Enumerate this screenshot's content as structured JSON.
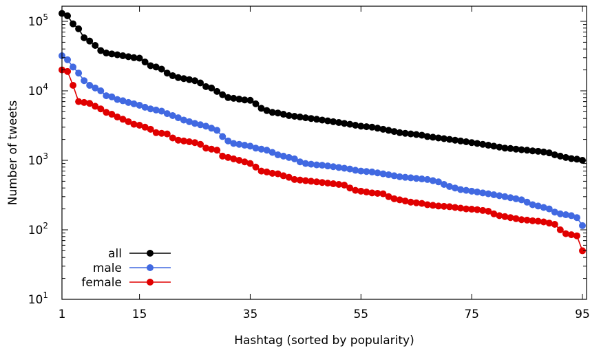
{
  "chart_data": {
    "type": "line",
    "xlabel": "Hashtag (sorted by popularity)",
    "ylabel": "Number of tweets",
    "xlim": [
      1,
      95
    ],
    "ylim": [
      10,
      160000
    ],
    "yscale": "log",
    "x_ticks": [
      1,
      15,
      35,
      55,
      75,
      95
    ],
    "y_ticks": [
      {
        "value": 10,
        "base": "10",
        "exp": "1"
      },
      {
        "value": 100,
        "base": "10",
        "exp": "2"
      },
      {
        "value": 1000,
        "base": "10",
        "exp": "3"
      },
      {
        "value": 10000,
        "base": "10",
        "exp": "4"
      },
      {
        "value": 100000,
        "base": "10",
        "exp": "5"
      }
    ],
    "legend_position": "bottom-left",
    "grid": false,
    "x": [
      1,
      2,
      3,
      4,
      5,
      6,
      7,
      8,
      9,
      10,
      11,
      12,
      13,
      14,
      15,
      16,
      17,
      18,
      19,
      20,
      21,
      22,
      23,
      24,
      25,
      26,
      27,
      28,
      29,
      30,
      31,
      32,
      33,
      34,
      35,
      36,
      37,
      38,
      39,
      40,
      41,
      42,
      43,
      44,
      45,
      46,
      47,
      48,
      49,
      50,
      51,
      52,
      53,
      54,
      55,
      56,
      57,
      58,
      59,
      60,
      61,
      62,
      63,
      64,
      65,
      66,
      67,
      68,
      69,
      70,
      71,
      72,
      73,
      74,
      75,
      76,
      77,
      78,
      79,
      80,
      81,
      82,
      83,
      84,
      85,
      86,
      87,
      88,
      89,
      90,
      91,
      92,
      93,
      94,
      95
    ],
    "series": [
      {
        "name": "all",
        "color": "#000000",
        "values": [
          130000,
          120000,
          92000,
          78000,
          58000,
          52000,
          45000,
          38000,
          35000,
          34000,
          33000,
          32000,
          31000,
          30000,
          29500,
          26000,
          23000,
          22000,
          20500,
          18000,
          16500,
          15500,
          15000,
          14500,
          14000,
          13000,
          11500,
          11000,
          9800,
          8800,
          8000,
          7800,
          7600,
          7400,
          7300,
          6500,
          5600,
          5200,
          4900,
          4800,
          4600,
          4400,
          4300,
          4200,
          4100,
          4000,
          3900,
          3800,
          3700,
          3600,
          3500,
          3400,
          3300,
          3200,
          3100,
          3050,
          3000,
          2900,
          2800,
          2700,
          2600,
          2500,
          2450,
          2400,
          2350,
          2300,
          2200,
          2150,
          2100,
          2050,
          2000,
          1950,
          1900,
          1850,
          1800,
          1750,
          1700,
          1650,
          1600,
          1550,
          1500,
          1480,
          1450,
          1420,
          1400,
          1370,
          1350,
          1320,
          1280,
          1200,
          1150,
          1100,
          1060,
          1040,
          1000
        ]
      },
      {
        "name": "male",
        "color": "#4169e1",
        "values": [
          32000,
          28000,
          22000,
          18000,
          14000,
          12000,
          11000,
          10000,
          8500,
          8200,
          7500,
          7200,
          6800,
          6500,
          6200,
          5800,
          5500,
          5300,
          5100,
          4700,
          4400,
          4100,
          3800,
          3600,
          3400,
          3250,
          3100,
          2900,
          2700,
          2200,
          1900,
          1750,
          1700,
          1650,
          1600,
          1500,
          1450,
          1400,
          1300,
          1200,
          1150,
          1100,
          1050,
          950,
          900,
          880,
          860,
          850,
          830,
          810,
          790,
          770,
          750,
          720,
          700,
          690,
          680,
          660,
          640,
          620,
          600,
          580,
          570,
          560,
          550,
          540,
          530,
          510,
          490,
          450,
          420,
          400,
          380,
          370,
          360,
          350,
          340,
          330,
          320,
          310,
          300,
          290,
          280,
          270,
          250,
          230,
          220,
          210,
          200,
          180,
          170,
          165,
          160,
          150,
          115
        ]
      },
      {
        "name": "female",
        "color": "#e00000",
        "values": [
          20000,
          19000,
          12000,
          7000,
          6800,
          6600,
          6000,
          5500,
          4900,
          4600,
          4200,
          3900,
          3600,
          3300,
          3200,
          3000,
          2800,
          2500,
          2450,
          2400,
          2100,
          1950,
          1900,
          1850,
          1800,
          1700,
          1500,
          1450,
          1400,
          1150,
          1100,
          1050,
          1000,
          950,
          900,
          800,
          700,
          680,
          650,
          640,
          600,
          570,
          530,
          520,
          510,
          500,
          490,
          480,
          470,
          460,
          450,
          440,
          400,
          370,
          360,
          350,
          340,
          335,
          330,
          300,
          280,
          270,
          260,
          250,
          245,
          240,
          230,
          225,
          220,
          218,
          215,
          210,
          205,
          200,
          198,
          195,
          190,
          185,
          170,
          160,
          155,
          150,
          145,
          140,
          138,
          135,
          133,
          130,
          125,
          120,
          100,
          88,
          85,
          82,
          50
        ]
      }
    ]
  }
}
